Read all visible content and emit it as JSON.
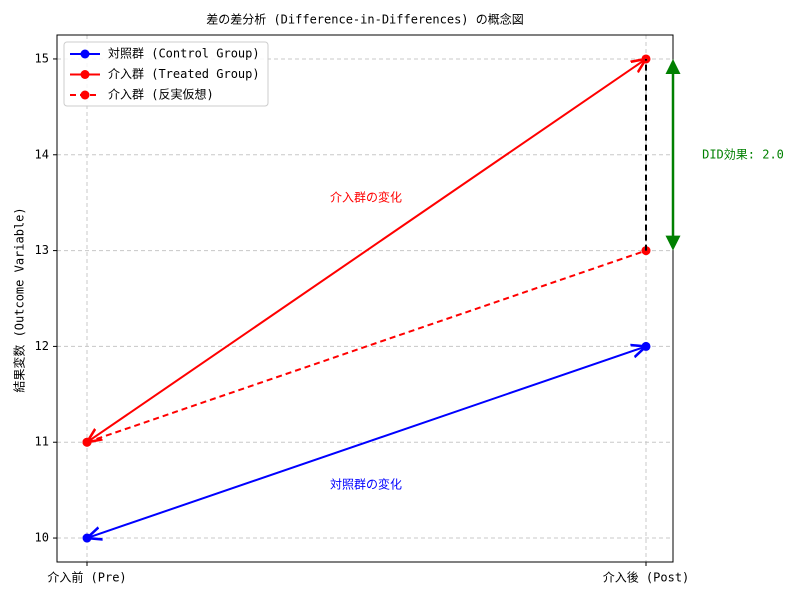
{
  "chart_data": {
    "type": "line",
    "title": "差の差分析 (Difference-in-Differences) の概念図",
    "y_label": "結果変数 (Outcome Variable)",
    "categories": [
      "介入前 (Pre)",
      "介入後 (Post)"
    ],
    "series": [
      {
        "name": "対照群 (Control Group)",
        "color": "#0000ff",
        "style": "solid",
        "values": [
          10,
          12
        ]
      },
      {
        "name": "介入群 (Treated Group)",
        "color": "#ff0000",
        "style": "solid",
        "values": [
          11,
          15
        ]
      },
      {
        "name": "介入群 (反実仮想)",
        "color": "#ff0000",
        "style": "dashed",
        "values": [
          11,
          13
        ]
      }
    ],
    "annotations": {
      "treated_change": "介入群の変化",
      "control_change": "対照群の変化",
      "did": "DID効果: 2.0"
    },
    "annotation_colors": {
      "treated_change": "#ff0000",
      "control_change": "#0000ff",
      "did": "#008000"
    },
    "ylim": [
      9.75,
      15.25
    ],
    "yticks": [
      10,
      11,
      12,
      13,
      14,
      15
    ],
    "grid": true,
    "legend": "upper-left"
  }
}
